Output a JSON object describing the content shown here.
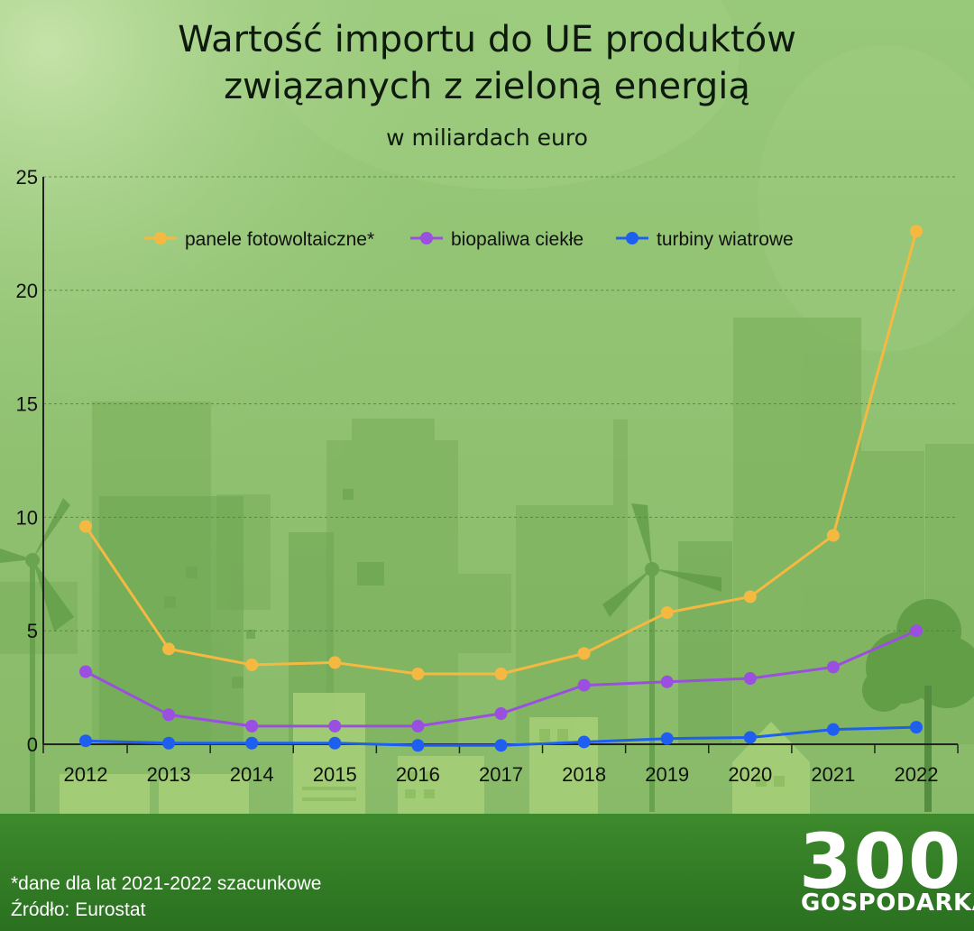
{
  "title_line1": "Wartość importu do UE produktów",
  "title_line2": "związanych z zieloną energią",
  "subtitle": "w miliardach euro",
  "footnote": "*dane dla lat 2021-2022 szacunkowe",
  "source": "Źródło: Eurostat",
  "logo": {
    "number": "300",
    "brand": "GOSPODARKA"
  },
  "colors": {
    "background": "#8dc06e",
    "ground": "#2f7d24",
    "panele": "#f5b942",
    "biopaliwa": "#9a4fe0",
    "turbiny": "#1f5ff0"
  },
  "chart_data": {
    "type": "line",
    "x": [
      "2012",
      "2013",
      "2014",
      "2015",
      "2016",
      "2017",
      "2018",
      "2019",
      "2020",
      "2021",
      "2022"
    ],
    "ylim": [
      0,
      25
    ],
    "yticks": [
      "0",
      "5",
      "10",
      "15",
      "20",
      "25"
    ],
    "grid": true,
    "legend_position": "top",
    "series": [
      {
        "name": "panele fotowoltaiczne*",
        "color": "#f5b942",
        "values": [
          9.6,
          4.2,
          3.5,
          3.6,
          3.1,
          3.1,
          4.0,
          5.8,
          6.5,
          9.2,
          22.6
        ]
      },
      {
        "name": "biopaliwa ciekłe",
        "color": "#9a4fe0",
        "values": [
          3.2,
          1.3,
          0.8,
          0.8,
          0.8,
          1.35,
          2.6,
          2.75,
          2.9,
          3.4,
          5.0
        ]
      },
      {
        "name": "turbiny wiatrowe",
        "color": "#1f5ff0",
        "values": [
          0.15,
          0.05,
          0.05,
          0.05,
          -0.05,
          -0.05,
          0.1,
          0.25,
          0.3,
          0.65,
          0.75
        ]
      }
    ]
  }
}
